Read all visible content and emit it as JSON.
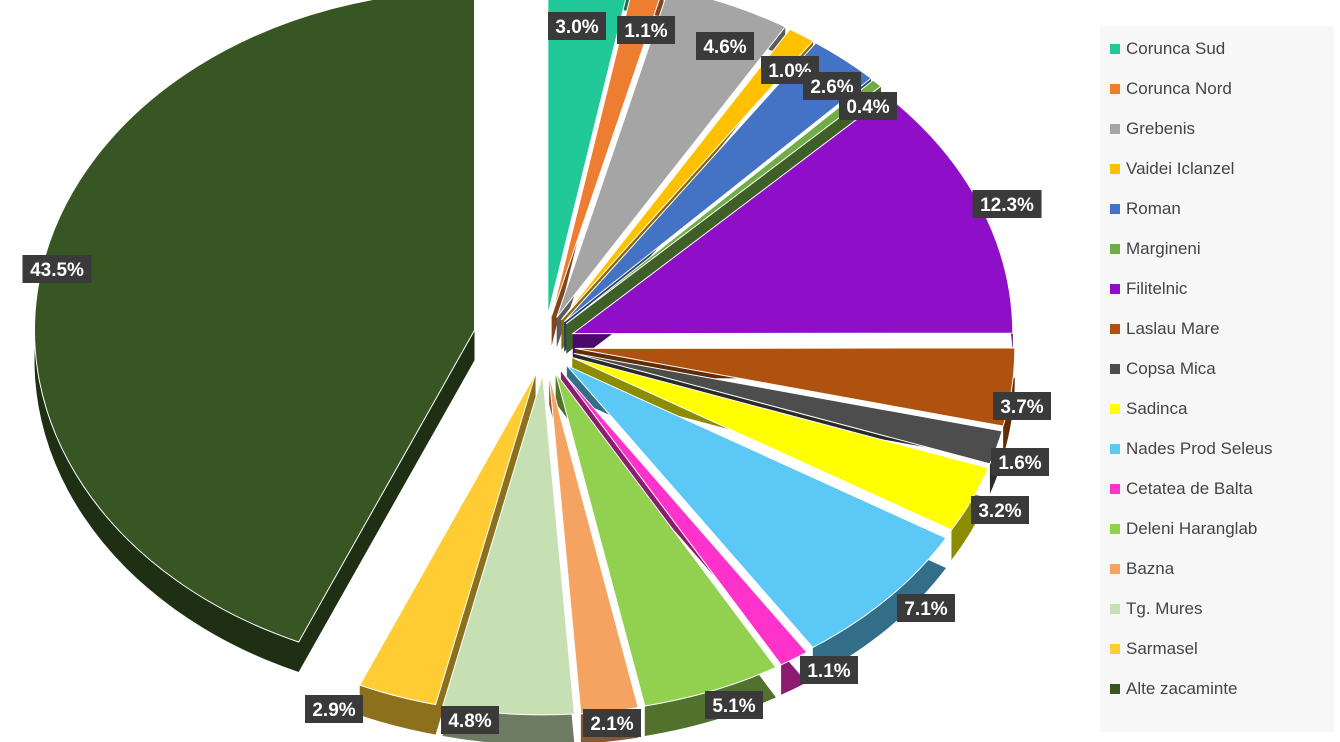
{
  "chart_data": {
    "type": "pie",
    "title": "",
    "unit": "%",
    "legend_position": "right",
    "style": "3d exploded",
    "slices": [
      {
        "name": "Corunca Sud",
        "value": 3.0,
        "label": "3.0%",
        "color": "#20c997"
      },
      {
        "name": "Corunca Nord",
        "value": 1.1,
        "label": "1.1%",
        "color": "#ed7d31"
      },
      {
        "name": "Grebenis",
        "value": 4.6,
        "label": "4.6%",
        "color": "#a5a5a5"
      },
      {
        "name": "Vaidei Iclanzel",
        "value": 1.0,
        "label": "1.0%",
        "color": "#ffc000"
      },
      {
        "name": "Roman",
        "value": 2.6,
        "label": "2.6%",
        "color": "#4472c4"
      },
      {
        "name": "Margineni",
        "value": 0.4,
        "label": "0.4%",
        "color": "#70ad47"
      },
      {
        "name": "Filitelnic",
        "value": 12.3,
        "label": "12.3%",
        "color": "#8e0fc7"
      },
      {
        "name": "Laslau Mare",
        "value": 3.7,
        "label": "3.7%",
        "color": "#b0520f"
      },
      {
        "name": "Copsa Mica",
        "value": 1.6,
        "label": "1.6%",
        "color": "#4d4d4d"
      },
      {
        "name": "Sadinca",
        "value": 3.2,
        "label": "3.2%",
        "color": "#ffff00"
      },
      {
        "name": "Nades Prod Seleus",
        "value": 7.1,
        "label": "7.1%",
        "color": "#5bc8f5"
      },
      {
        "name": "Cetatea de Balta",
        "value": 1.1,
        "label": "1.1%",
        "color": "#ff33cc"
      },
      {
        "name": "Deleni Haranglab",
        "value": 5.1,
        "label": "5.1%",
        "color": "#92d050"
      },
      {
        "name": "Bazna",
        "value": 2.1,
        "label": "2.1%",
        "color": "#f4a460"
      },
      {
        "name": "Tg. Mures",
        "value": 4.8,
        "label": "4.8%",
        "color": "#c6e0b4"
      },
      {
        "name": "Sarmasel",
        "value": 2.9,
        "label": "2.9%",
        "color": "#ffcc33"
      },
      {
        "name": "Alte zacaminte",
        "value": 43.5,
        "label": "43.5%",
        "color": "#375623"
      }
    ]
  }
}
